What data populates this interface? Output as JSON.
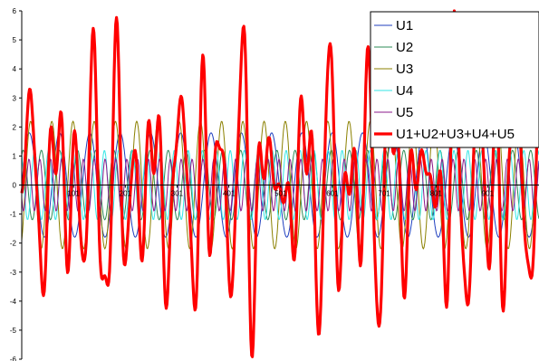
{
  "chart_data": {
    "type": "line",
    "title": "",
    "xlabel": "",
    "ylabel": "",
    "xlim": [
      1,
      1000
    ],
    "ylim": [
      -6,
      6
    ],
    "y_ticks": [
      "6",
      "5",
      "4",
      "3",
      "2",
      "1",
      "0",
      "-1",
      "-2",
      "-3",
      "-4",
      "-5",
      "-6"
    ],
    "x_ticks": [
      "101",
      "201",
      "301",
      "401",
      "501",
      "601",
      "701",
      "801",
      "901"
    ],
    "x_tick_values": [
      101,
      201,
      301,
      401,
      501,
      601,
      701,
      801,
      901
    ],
    "grid": false,
    "legend_position": "top-right",
    "series": [
      {
        "name": "U1",
        "color": "#1f3fbf",
        "amplitude": 1.8,
        "period": 58.5,
        "phase_deg": 0
      },
      {
        "name": "U2",
        "color": "#2e8b57",
        "amplitude": 1.2,
        "period": 35.0,
        "phase_deg": 60
      },
      {
        "name": "U3",
        "color": "#8b8000",
        "amplitude": 2.2,
        "period": 41.0,
        "phase_deg": 300
      },
      {
        "name": "U4",
        "color": "#33e6e6",
        "amplitude": 1.2,
        "period": 27.0,
        "phase_deg": 120
      },
      {
        "name": "U5",
        "color": "#8b1a8b",
        "amplitude": 0.9,
        "period": 21.0,
        "phase_deg": 210
      },
      {
        "name": "U1+U2+U3+U4+U5",
        "color": "#ff0000",
        "sum_of": [
          "U1",
          "U2",
          "U3",
          "U4",
          "U5"
        ]
      }
    ]
  }
}
